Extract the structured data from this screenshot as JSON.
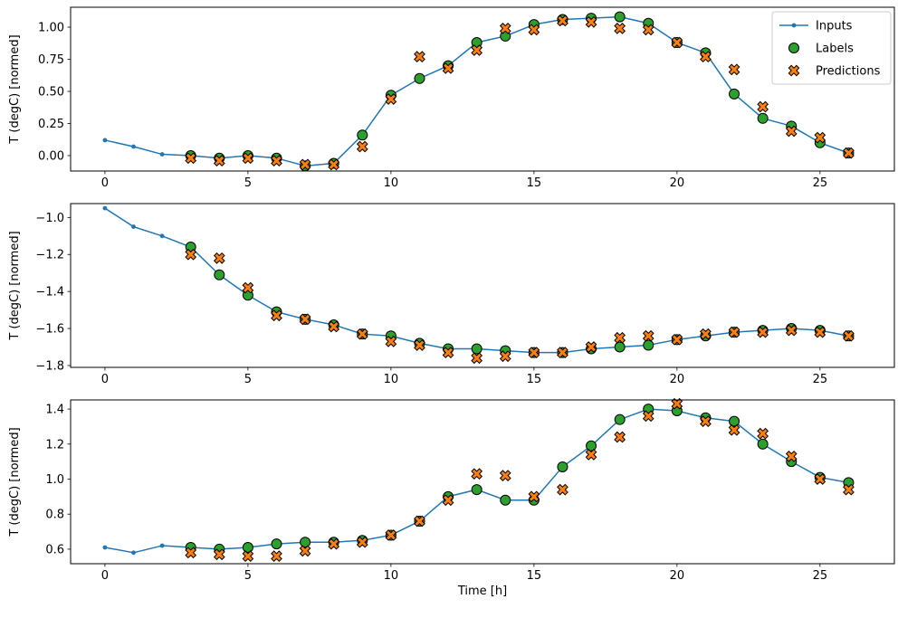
{
  "figure": {
    "background": "#ffffff",
    "xlabel": "Time [h]",
    "ylabel": "T (degC) [normed]",
    "legend": {
      "position": "upper right",
      "entries": [
        {
          "label": "Inputs",
          "marker": "line-dot",
          "color": "#1f77b4"
        },
        {
          "label": "Labels",
          "marker": "circle",
          "color": "#2ca02c"
        },
        {
          "label": "Predictions",
          "marker": "x",
          "color": "#ff7f0e"
        }
      ]
    }
  },
  "chart_data": [
    {
      "type": "line",
      "title": "",
      "xlabel": "",
      "ylabel": "T (degC) [normed]",
      "xlim": [
        -1.2,
        27.6
      ],
      "ylim": [
        -0.12,
        1.155
      ],
      "xticks": [
        0,
        5,
        10,
        15,
        20,
        25
      ],
      "xtick_labels": [
        "0",
        "5",
        "10",
        "15",
        "20",
        "25"
      ],
      "yticks": [
        0.0,
        0.25,
        0.5,
        0.75,
        1.0
      ],
      "ytick_labels": [
        "0.00",
        "0.25",
        "0.50",
        "0.75",
        "1.00"
      ],
      "grid": false,
      "series": [
        {
          "name": "Inputs",
          "kind": "line",
          "marker": "dot",
          "color": "#1f77b4",
          "x": [
            0,
            1,
            2,
            3,
            4,
            5,
            6,
            7,
            8,
            9,
            10,
            11,
            12,
            13,
            14,
            15,
            16,
            17,
            18,
            19,
            20,
            21,
            22,
            23,
            24,
            25,
            26
          ],
          "y": [
            0.12,
            0.07,
            0.01,
            0.0,
            -0.02,
            0.0,
            -0.02,
            -0.08,
            -0.06,
            0.16,
            0.47,
            0.6,
            0.7,
            0.88,
            0.93,
            1.02,
            1.06,
            1.07,
            1.08,
            1.03,
            0.88,
            0.8,
            0.48,
            0.29,
            0.23,
            0.1,
            0.02
          ]
        },
        {
          "name": "Labels",
          "kind": "scatter",
          "marker": "circle",
          "color": "#2ca02c",
          "edge": "#000000",
          "x": [
            3,
            4,
            5,
            6,
            7,
            8,
            9,
            10,
            11,
            12,
            13,
            14,
            15,
            16,
            17,
            18,
            19,
            20,
            21,
            22,
            23,
            24,
            25,
            26
          ],
          "y": [
            0.0,
            -0.02,
            0.0,
            -0.02,
            -0.08,
            -0.06,
            0.16,
            0.47,
            0.6,
            0.7,
            0.88,
            0.93,
            1.02,
            1.06,
            1.07,
            1.08,
            1.03,
            0.88,
            0.8,
            0.48,
            0.29,
            0.23,
            0.1,
            0.02
          ]
        },
        {
          "name": "Predictions",
          "kind": "scatter",
          "marker": "x",
          "color": "#ff7f0e",
          "edge": "#000000",
          "x": [
            3,
            4,
            5,
            6,
            7,
            8,
            9,
            10,
            11,
            12,
            13,
            14,
            15,
            16,
            17,
            18,
            19,
            20,
            21,
            22,
            23,
            24,
            25,
            26
          ],
          "y": [
            -0.02,
            -0.04,
            -0.02,
            -0.04,
            -0.07,
            -0.07,
            0.07,
            0.44,
            0.77,
            0.68,
            0.82,
            0.99,
            0.98,
            1.05,
            1.04,
            0.99,
            0.98,
            0.88,
            0.77,
            0.67,
            0.38,
            0.19,
            0.14,
            0.02
          ]
        }
      ]
    },
    {
      "type": "line",
      "title": "",
      "xlabel": "",
      "ylabel": "T (degC) [normed]",
      "xlim": [
        -1.2,
        27.6
      ],
      "ylim": [
        -1.81,
        -0.925
      ],
      "xticks": [
        0,
        5,
        10,
        15,
        20,
        25
      ],
      "xtick_labels": [
        "0",
        "5",
        "10",
        "15",
        "20",
        "25"
      ],
      "yticks": [
        -1.0,
        -1.2,
        -1.4,
        -1.6,
        -1.8
      ],
      "ytick_labels": [
        "−1.0",
        "−1.2",
        "−1.4",
        "−1.6",
        "−1.8"
      ],
      "grid": false,
      "series": [
        {
          "name": "Inputs",
          "kind": "line",
          "marker": "dot",
          "color": "#1f77b4",
          "x": [
            0,
            1,
            2,
            3,
            4,
            5,
            6,
            7,
            8,
            9,
            10,
            11,
            12,
            13,
            14,
            15,
            16,
            17,
            18,
            19,
            20,
            21,
            22,
            23,
            24,
            25,
            26
          ],
          "y": [
            -0.95,
            -1.05,
            -1.1,
            -1.16,
            -1.31,
            -1.42,
            -1.51,
            -1.55,
            -1.58,
            -1.63,
            -1.64,
            -1.68,
            -1.71,
            -1.71,
            -1.72,
            -1.73,
            -1.73,
            -1.71,
            -1.7,
            -1.69,
            -1.66,
            -1.64,
            -1.62,
            -1.61,
            -1.6,
            -1.61,
            -1.64
          ]
        },
        {
          "name": "Labels",
          "kind": "scatter",
          "marker": "circle",
          "color": "#2ca02c",
          "edge": "#000000",
          "x": [
            3,
            4,
            5,
            6,
            7,
            8,
            9,
            10,
            11,
            12,
            13,
            14,
            15,
            16,
            17,
            18,
            19,
            20,
            21,
            22,
            23,
            24,
            25,
            26
          ],
          "y": [
            -1.16,
            -1.31,
            -1.42,
            -1.51,
            -1.55,
            -1.58,
            -1.63,
            -1.64,
            -1.68,
            -1.71,
            -1.71,
            -1.72,
            -1.73,
            -1.73,
            -1.71,
            -1.7,
            -1.69,
            -1.66,
            -1.64,
            -1.62,
            -1.61,
            -1.6,
            -1.61,
            -1.64
          ]
        },
        {
          "name": "Predictions",
          "kind": "scatter",
          "marker": "x",
          "color": "#ff7f0e",
          "edge": "#000000",
          "x": [
            3,
            4,
            5,
            6,
            7,
            8,
            9,
            10,
            11,
            12,
            13,
            14,
            15,
            16,
            17,
            18,
            19,
            20,
            21,
            22,
            23,
            24,
            25,
            26
          ],
          "y": [
            -1.2,
            -1.22,
            -1.38,
            -1.53,
            -1.55,
            -1.59,
            -1.63,
            -1.67,
            -1.69,
            -1.73,
            -1.76,
            -1.75,
            -1.73,
            -1.73,
            -1.7,
            -1.65,
            -1.64,
            -1.66,
            -1.63,
            -1.62,
            -1.62,
            -1.61,
            -1.62,
            -1.64
          ]
        }
      ]
    },
    {
      "type": "line",
      "title": "",
      "xlabel": "Time [h]",
      "ylabel": "T (degC) [normed]",
      "xlim": [
        -1.2,
        27.6
      ],
      "ylim": [
        0.517,
        1.452
      ],
      "xticks": [
        0,
        5,
        10,
        15,
        20,
        25
      ],
      "xtick_labels": [
        "0",
        "5",
        "10",
        "15",
        "20",
        "25"
      ],
      "yticks": [
        0.6,
        0.8,
        1.0,
        1.2,
        1.4
      ],
      "ytick_labels": [
        "0.6",
        "0.8",
        "1.0",
        "1.2",
        "1.4"
      ],
      "grid": false,
      "series": [
        {
          "name": "Inputs",
          "kind": "line",
          "marker": "dot",
          "color": "#1f77b4",
          "x": [
            0,
            1,
            2,
            3,
            4,
            5,
            6,
            7,
            8,
            9,
            10,
            11,
            12,
            13,
            14,
            15,
            16,
            17,
            18,
            19,
            20,
            21,
            22,
            23,
            24,
            25,
            26
          ],
          "y": [
            0.61,
            0.58,
            0.62,
            0.61,
            0.6,
            0.61,
            0.63,
            0.64,
            0.64,
            0.65,
            0.68,
            0.76,
            0.9,
            0.94,
            0.88,
            0.88,
            1.07,
            1.19,
            1.34,
            1.4,
            1.39,
            1.35,
            1.33,
            1.2,
            1.1,
            1.01,
            0.98
          ]
        },
        {
          "name": "Labels",
          "kind": "scatter",
          "marker": "circle",
          "color": "#2ca02c",
          "edge": "#000000",
          "x": [
            3,
            4,
            5,
            6,
            7,
            8,
            9,
            10,
            11,
            12,
            13,
            14,
            15,
            16,
            17,
            18,
            19,
            20,
            21,
            22,
            23,
            24,
            25,
            26
          ],
          "y": [
            0.61,
            0.6,
            0.61,
            0.63,
            0.64,
            0.64,
            0.65,
            0.68,
            0.76,
            0.9,
            0.94,
            0.88,
            0.88,
            1.07,
            1.19,
            1.34,
            1.4,
            1.39,
            1.35,
            1.33,
            1.2,
            1.1,
            1.01,
            0.98
          ]
        },
        {
          "name": "Predictions",
          "kind": "scatter",
          "marker": "x",
          "color": "#ff7f0e",
          "edge": "#000000",
          "x": [
            3,
            4,
            5,
            6,
            7,
            8,
            9,
            10,
            11,
            12,
            13,
            14,
            15,
            16,
            17,
            18,
            19,
            20,
            21,
            22,
            23,
            24,
            25,
            26
          ],
          "y": [
            0.58,
            0.57,
            0.56,
            0.56,
            0.59,
            0.63,
            0.64,
            0.68,
            0.76,
            0.88,
            1.03,
            1.02,
            0.9,
            0.94,
            1.14,
            1.24,
            1.36,
            1.43,
            1.33,
            1.28,
            1.26,
            1.13,
            1.0,
            0.94
          ]
        }
      ]
    }
  ]
}
